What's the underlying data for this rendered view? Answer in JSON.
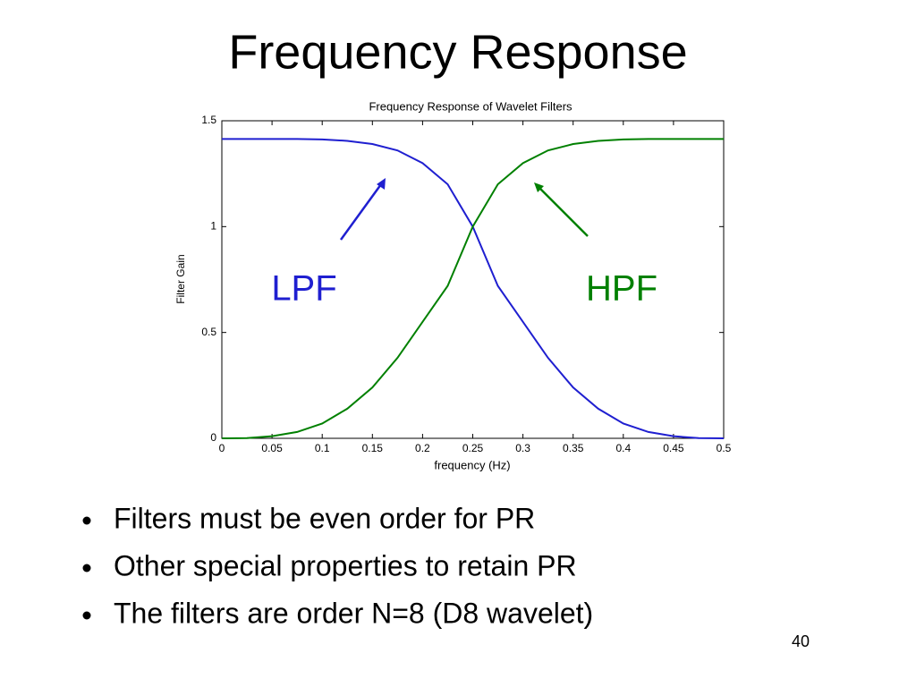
{
  "slide": {
    "title": "Frequency Response",
    "bullets": [
      "Filters must be even order for PR",
      "Other special properties to retain PR",
      "The filters are order N=8 (D8 wavelet)"
    ],
    "page_number": "40"
  },
  "chart_data": {
    "type": "line",
    "title": "Frequency Response of Wavelet Filters",
    "x_label": "frequency (Hz)",
    "y_label": "Filter Gain",
    "x": [
      0,
      0.025,
      0.05,
      0.075,
      0.1,
      0.125,
      0.15,
      0.175,
      0.2,
      0.225,
      0.25,
      0.275,
      0.3,
      0.325,
      0.35,
      0.375,
      0.4,
      0.425,
      0.45,
      0.475,
      0.5
    ],
    "series": [
      {
        "name": "LPF",
        "color": "#1f1fd0",
        "values": [
          1.414,
          1.414,
          1.414,
          1.414,
          1.412,
          1.405,
          1.39,
          1.36,
          1.3,
          1.2,
          1.0,
          0.72,
          0.55,
          0.38,
          0.24,
          0.14,
          0.07,
          0.03,
          0.01,
          0.001,
          0
        ]
      },
      {
        "name": "HPF",
        "color": "#008000",
        "values": [
          0,
          0.001,
          0.01,
          0.03,
          0.07,
          0.14,
          0.24,
          0.38,
          0.55,
          0.72,
          1.0,
          1.2,
          1.3,
          1.36,
          1.39,
          1.405,
          1.412,
          1.414,
          1.414,
          1.414,
          1.414
        ]
      }
    ],
    "xlim": [
      0,
      0.5
    ],
    "xticks": [
      0,
      0.05,
      0.1,
      0.15,
      0.2,
      0.25,
      0.3,
      0.35,
      0.4,
      0.45,
      0.5
    ],
    "ylim": [
      0,
      1.5
    ],
    "yticks": [
      0,
      0.5,
      1,
      1.5
    ],
    "grid": false
  }
}
